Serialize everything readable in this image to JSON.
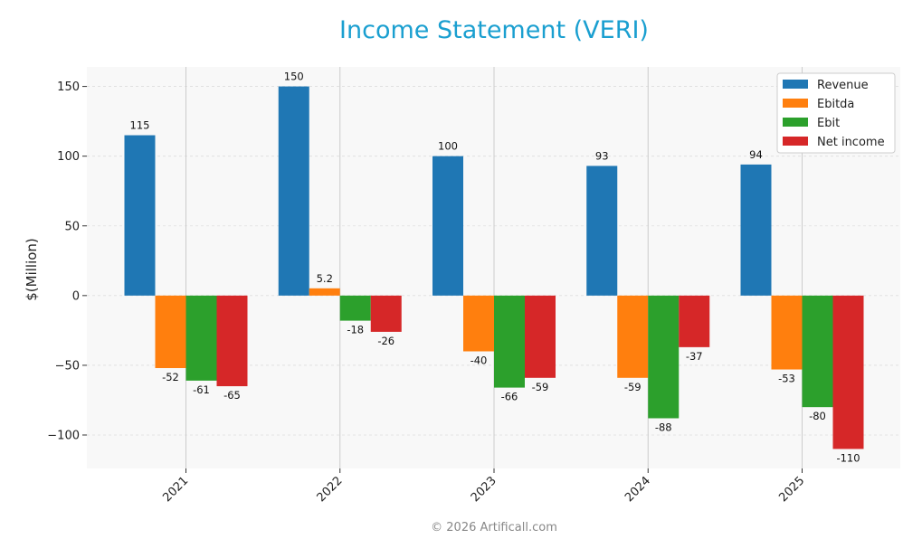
{
  "chart_data": {
    "type": "bar",
    "title": "Income Statement (VERI)",
    "xlabel": "",
    "ylabel": "$(Million)",
    "categories": [
      "2021",
      "2022",
      "2023",
      "2024",
      "2025"
    ],
    "series": [
      {
        "name": "Revenue",
        "color": "#1f77b4",
        "values": [
          115,
          150,
          100,
          93,
          94
        ],
        "labels": [
          "115",
          "150",
          "100",
          "93",
          "94"
        ]
      },
      {
        "name": "Ebitda",
        "color": "#ff7f0e",
        "values": [
          -52,
          5.2,
          -40,
          -59,
          -53
        ],
        "labels": [
          "-52",
          "5.2",
          "-40",
          "-59",
          "-53"
        ]
      },
      {
        "name": "Ebit",
        "color": "#2ca02c",
        "values": [
          -61,
          -18,
          -66,
          -88,
          -80
        ],
        "labels": [
          "-61",
          "-18",
          "-66",
          "-88",
          "-80"
        ]
      },
      {
        "name": "Net income",
        "color": "#d62728",
        "values": [
          -65,
          -26,
          -59,
          -37,
          -110
        ],
        "labels": [
          "-65",
          "-26",
          "-59",
          "-37",
          "-110"
        ]
      }
    ],
    "yticks": [
      150,
      100,
      50,
      0,
      -50,
      -100
    ],
    "ytick_labels": [
      "150",
      "100",
      "50",
      "0",
      "−50",
      "−100"
    ],
    "ylim": [
      -124,
      164
    ],
    "grid": true,
    "legend_position": "top-right"
  },
  "footer": "© 2026 Artificall.com"
}
